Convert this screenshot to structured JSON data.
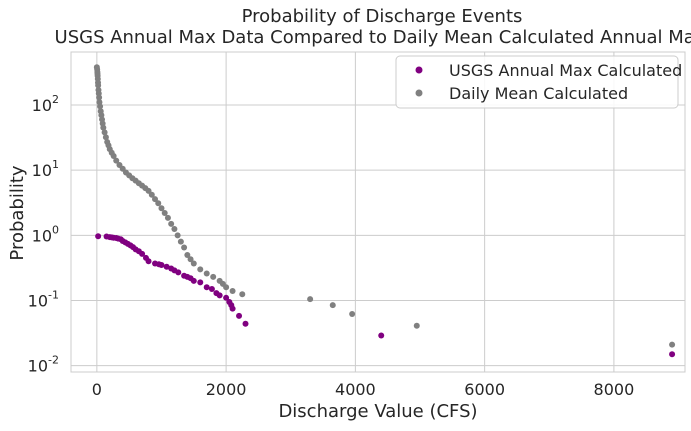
{
  "chart_data": {
    "type": "scatter",
    "title": "Probability of Discharge Events",
    "subtitle": "USGS Annual Max Data Compared to Daily Mean Calculated Annual Max",
    "xlabel": "Discharge Value (CFS)",
    "ylabel": "Probability",
    "xlim": [
      -400,
      9100
    ],
    "ylim": [
      0.008,
      650
    ],
    "yscale": "log",
    "x_ticks": [
      0,
      2000,
      4000,
      6000,
      8000
    ],
    "x_tick_labels": [
      "0",
      "2000",
      "4000",
      "6000",
      "8000"
    ],
    "y_ticks": [
      0.01,
      0.1,
      1,
      10,
      100
    ],
    "y_tick_labels": [
      {
        "base": "10",
        "exp": "-2"
      },
      {
        "base": "10",
        "exp": "-1"
      },
      {
        "base": "10",
        "exp": "0"
      },
      {
        "base": "10",
        "exp": "1"
      },
      {
        "base": "10",
        "exp": "2"
      }
    ],
    "grid": true,
    "legend_position": "top-right",
    "series": [
      {
        "name": "USGS Annual Max Calculated",
        "color": "#800080",
        "points": [
          [
            20,
            0.97
          ],
          [
            150,
            0.96
          ],
          [
            200,
            0.94
          ],
          [
            230,
            0.93
          ],
          [
            260,
            0.92
          ],
          [
            300,
            0.91
          ],
          [
            330,
            0.89
          ],
          [
            370,
            0.87
          ],
          [
            400,
            0.82
          ],
          [
            440,
            0.78
          ],
          [
            480,
            0.74
          ],
          [
            520,
            0.7
          ],
          [
            560,
            0.66
          ],
          [
            600,
            0.61
          ],
          [
            650,
            0.57
          ],
          [
            700,
            0.52
          ],
          [
            760,
            0.45
          ],
          [
            800,
            0.4
          ],
          [
            900,
            0.37
          ],
          [
            960,
            0.36
          ],
          [
            1000,
            0.35
          ],
          [
            1080,
            0.33
          ],
          [
            1150,
            0.31
          ],
          [
            1200,
            0.29
          ],
          [
            1260,
            0.27
          ],
          [
            1350,
            0.24
          ],
          [
            1400,
            0.23
          ],
          [
            1450,
            0.22
          ],
          [
            1500,
            0.2
          ],
          [
            1600,
            0.19
          ],
          [
            1700,
            0.16
          ],
          [
            1780,
            0.15
          ],
          [
            1850,
            0.13
          ],
          [
            1900,
            0.12
          ],
          [
            2000,
            0.11
          ],
          [
            2050,
            0.095
          ],
          [
            2080,
            0.085
          ],
          [
            2100,
            0.075
          ],
          [
            2200,
            0.058
          ],
          [
            2300,
            0.044
          ],
          [
            4400,
            0.029
          ],
          [
            8900,
            0.015
          ]
        ]
      },
      {
        "name": "Daily Mean Calculated",
        "color": "#808080",
        "points": [
          [
            0,
            380
          ],
          [
            5,
            350
          ],
          [
            8,
            320
          ],
          [
            10,
            300
          ],
          [
            12,
            280
          ],
          [
            15,
            250
          ],
          [
            18,
            220
          ],
          [
            20,
            200
          ],
          [
            25,
            170
          ],
          [
            30,
            150
          ],
          [
            35,
            130
          ],
          [
            40,
            110
          ],
          [
            50,
            95
          ],
          [
            60,
            80
          ],
          [
            70,
            70
          ],
          [
            80,
            60
          ],
          [
            90,
            52
          ],
          [
            100,
            45
          ],
          [
            120,
            38
          ],
          [
            140,
            32
          ],
          [
            160,
            27
          ],
          [
            180,
            24
          ],
          [
            200,
            21
          ],
          [
            230,
            18.5
          ],
          [
            260,
            16.5
          ],
          [
            300,
            14
          ],
          [
            350,
            12
          ],
          [
            400,
            10.5
          ],
          [
            450,
            9.2
          ],
          [
            500,
            8.3
          ],
          [
            550,
            7.5
          ],
          [
            600,
            6.9
          ],
          [
            650,
            6.3
          ],
          [
            700,
            5.8
          ],
          [
            750,
            5.3
          ],
          [
            800,
            4.8
          ],
          [
            850,
            4.2
          ],
          [
            900,
            3.6
          ],
          [
            950,
            3.1
          ],
          [
            1000,
            2.6
          ],
          [
            1050,
            2.2
          ],
          [
            1100,
            1.85
          ],
          [
            1150,
            1.5
          ],
          [
            1200,
            1.25
          ],
          [
            1250,
            1.0
          ],
          [
            1300,
            0.8
          ],
          [
            1350,
            0.65
          ],
          [
            1400,
            0.5
          ],
          [
            1450,
            0.43
          ],
          [
            1500,
            0.37
          ],
          [
            1600,
            0.3
          ],
          [
            1700,
            0.26
          ],
          [
            1800,
            0.23
          ],
          [
            1900,
            0.2
          ],
          [
            1950,
            0.18
          ],
          [
            2000,
            0.16
          ],
          [
            2100,
            0.14
          ],
          [
            2250,
            0.125
          ],
          [
            3300,
            0.105
          ],
          [
            3650,
            0.085
          ],
          [
            3950,
            0.062
          ],
          [
            4950,
            0.041
          ],
          [
            8900,
            0.021
          ]
        ]
      }
    ]
  }
}
